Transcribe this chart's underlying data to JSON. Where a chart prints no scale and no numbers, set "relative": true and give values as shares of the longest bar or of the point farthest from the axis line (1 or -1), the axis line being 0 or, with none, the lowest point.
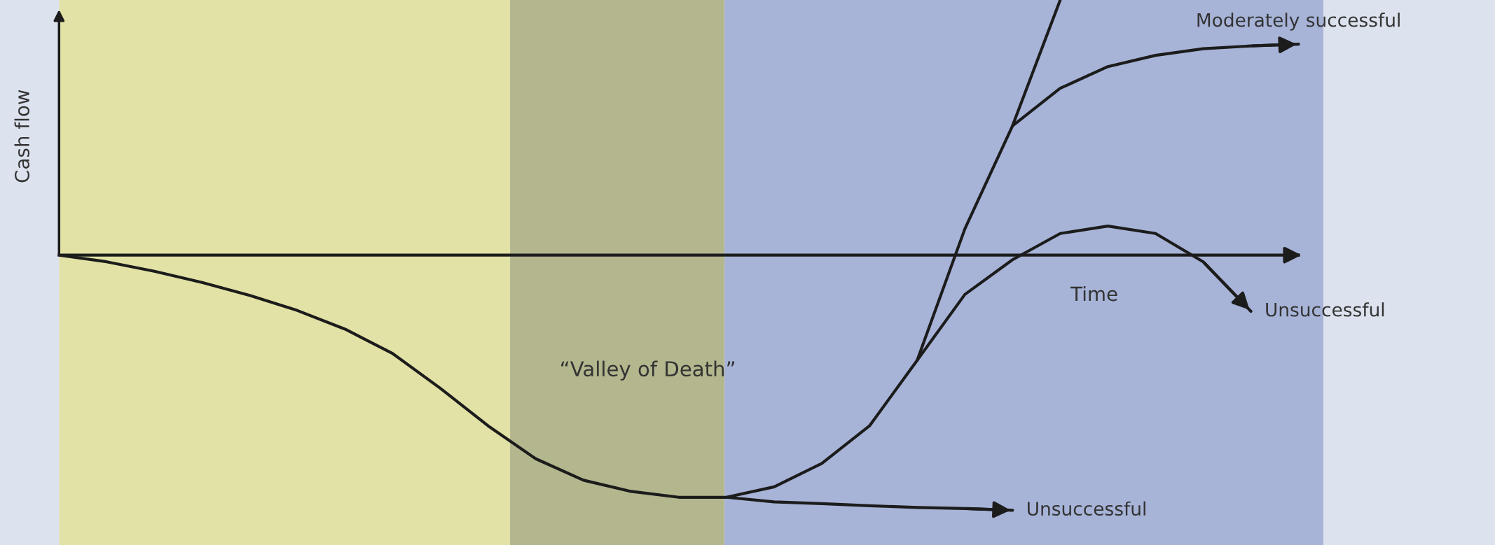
{
  "chart_data": {
    "type": "line",
    "relative": true,
    "xlabel": "Time",
    "ylabel": "Cash flow",
    "categories": [
      null,
      null,
      null,
      null,
      null,
      null,
      null,
      null,
      null,
      null,
      null,
      null,
      null,
      null,
      null,
      null,
      null,
      null,
      null,
      null,
      null,
      null,
      null,
      null,
      null,
      null,
      null
    ],
    "series": [
      {
        "color": "#1c1c1c",
        "values": [
          0,
          -0.026,
          -0.063,
          -0.107,
          -0.158,
          -0.217,
          -0.29,
          -0.386,
          -0.522,
          -0.669,
          -0.798,
          -0.882,
          -0.926,
          -0.949,
          -0.949,
          -0.908,
          -0.816,
          -0.669,
          -0.412,
          0.103,
          0.507,
          1.0,
          null,
          null,
          null,
          null,
          null
        ]
      },
      {
        "name": "Unsuccessful",
        "color": "#1c1c1c",
        "values": [
          null,
          null,
          null,
          null,
          null,
          null,
          null,
          null,
          null,
          null,
          null,
          null,
          null,
          null,
          -0.949,
          -0.967,
          -0.974,
          -0.982,
          -0.989,
          -0.993,
          -1.0,
          null,
          null,
          null,
          null,
          null,
          null
        ]
      },
      {
        "name": "Moderately successful",
        "color": "#1c1c1c",
        "values": [
          null,
          null,
          null,
          null,
          null,
          null,
          null,
          null,
          null,
          null,
          null,
          null,
          null,
          null,
          null,
          null,
          null,
          null,
          null,
          null,
          0.507,
          0.654,
          0.739,
          0.783,
          0.809,
          0.82,
          0.827
        ]
      },
      {
        "name": "Unsuccessful",
        "color": "#1c1c1c",
        "values": [
          null,
          null,
          null,
          null,
          null,
          null,
          null,
          null,
          null,
          null,
          null,
          null,
          null,
          null,
          null,
          null,
          null,
          null,
          -0.412,
          -0.154,
          -0.018,
          0.085,
          0.114,
          0.085,
          -0.026,
          -0.22,
          null
        ]
      }
    ],
    "annotations": [
      "“Valley of Death”"
    ],
    "line_style": "solid",
    "marker": "none"
  }
}
